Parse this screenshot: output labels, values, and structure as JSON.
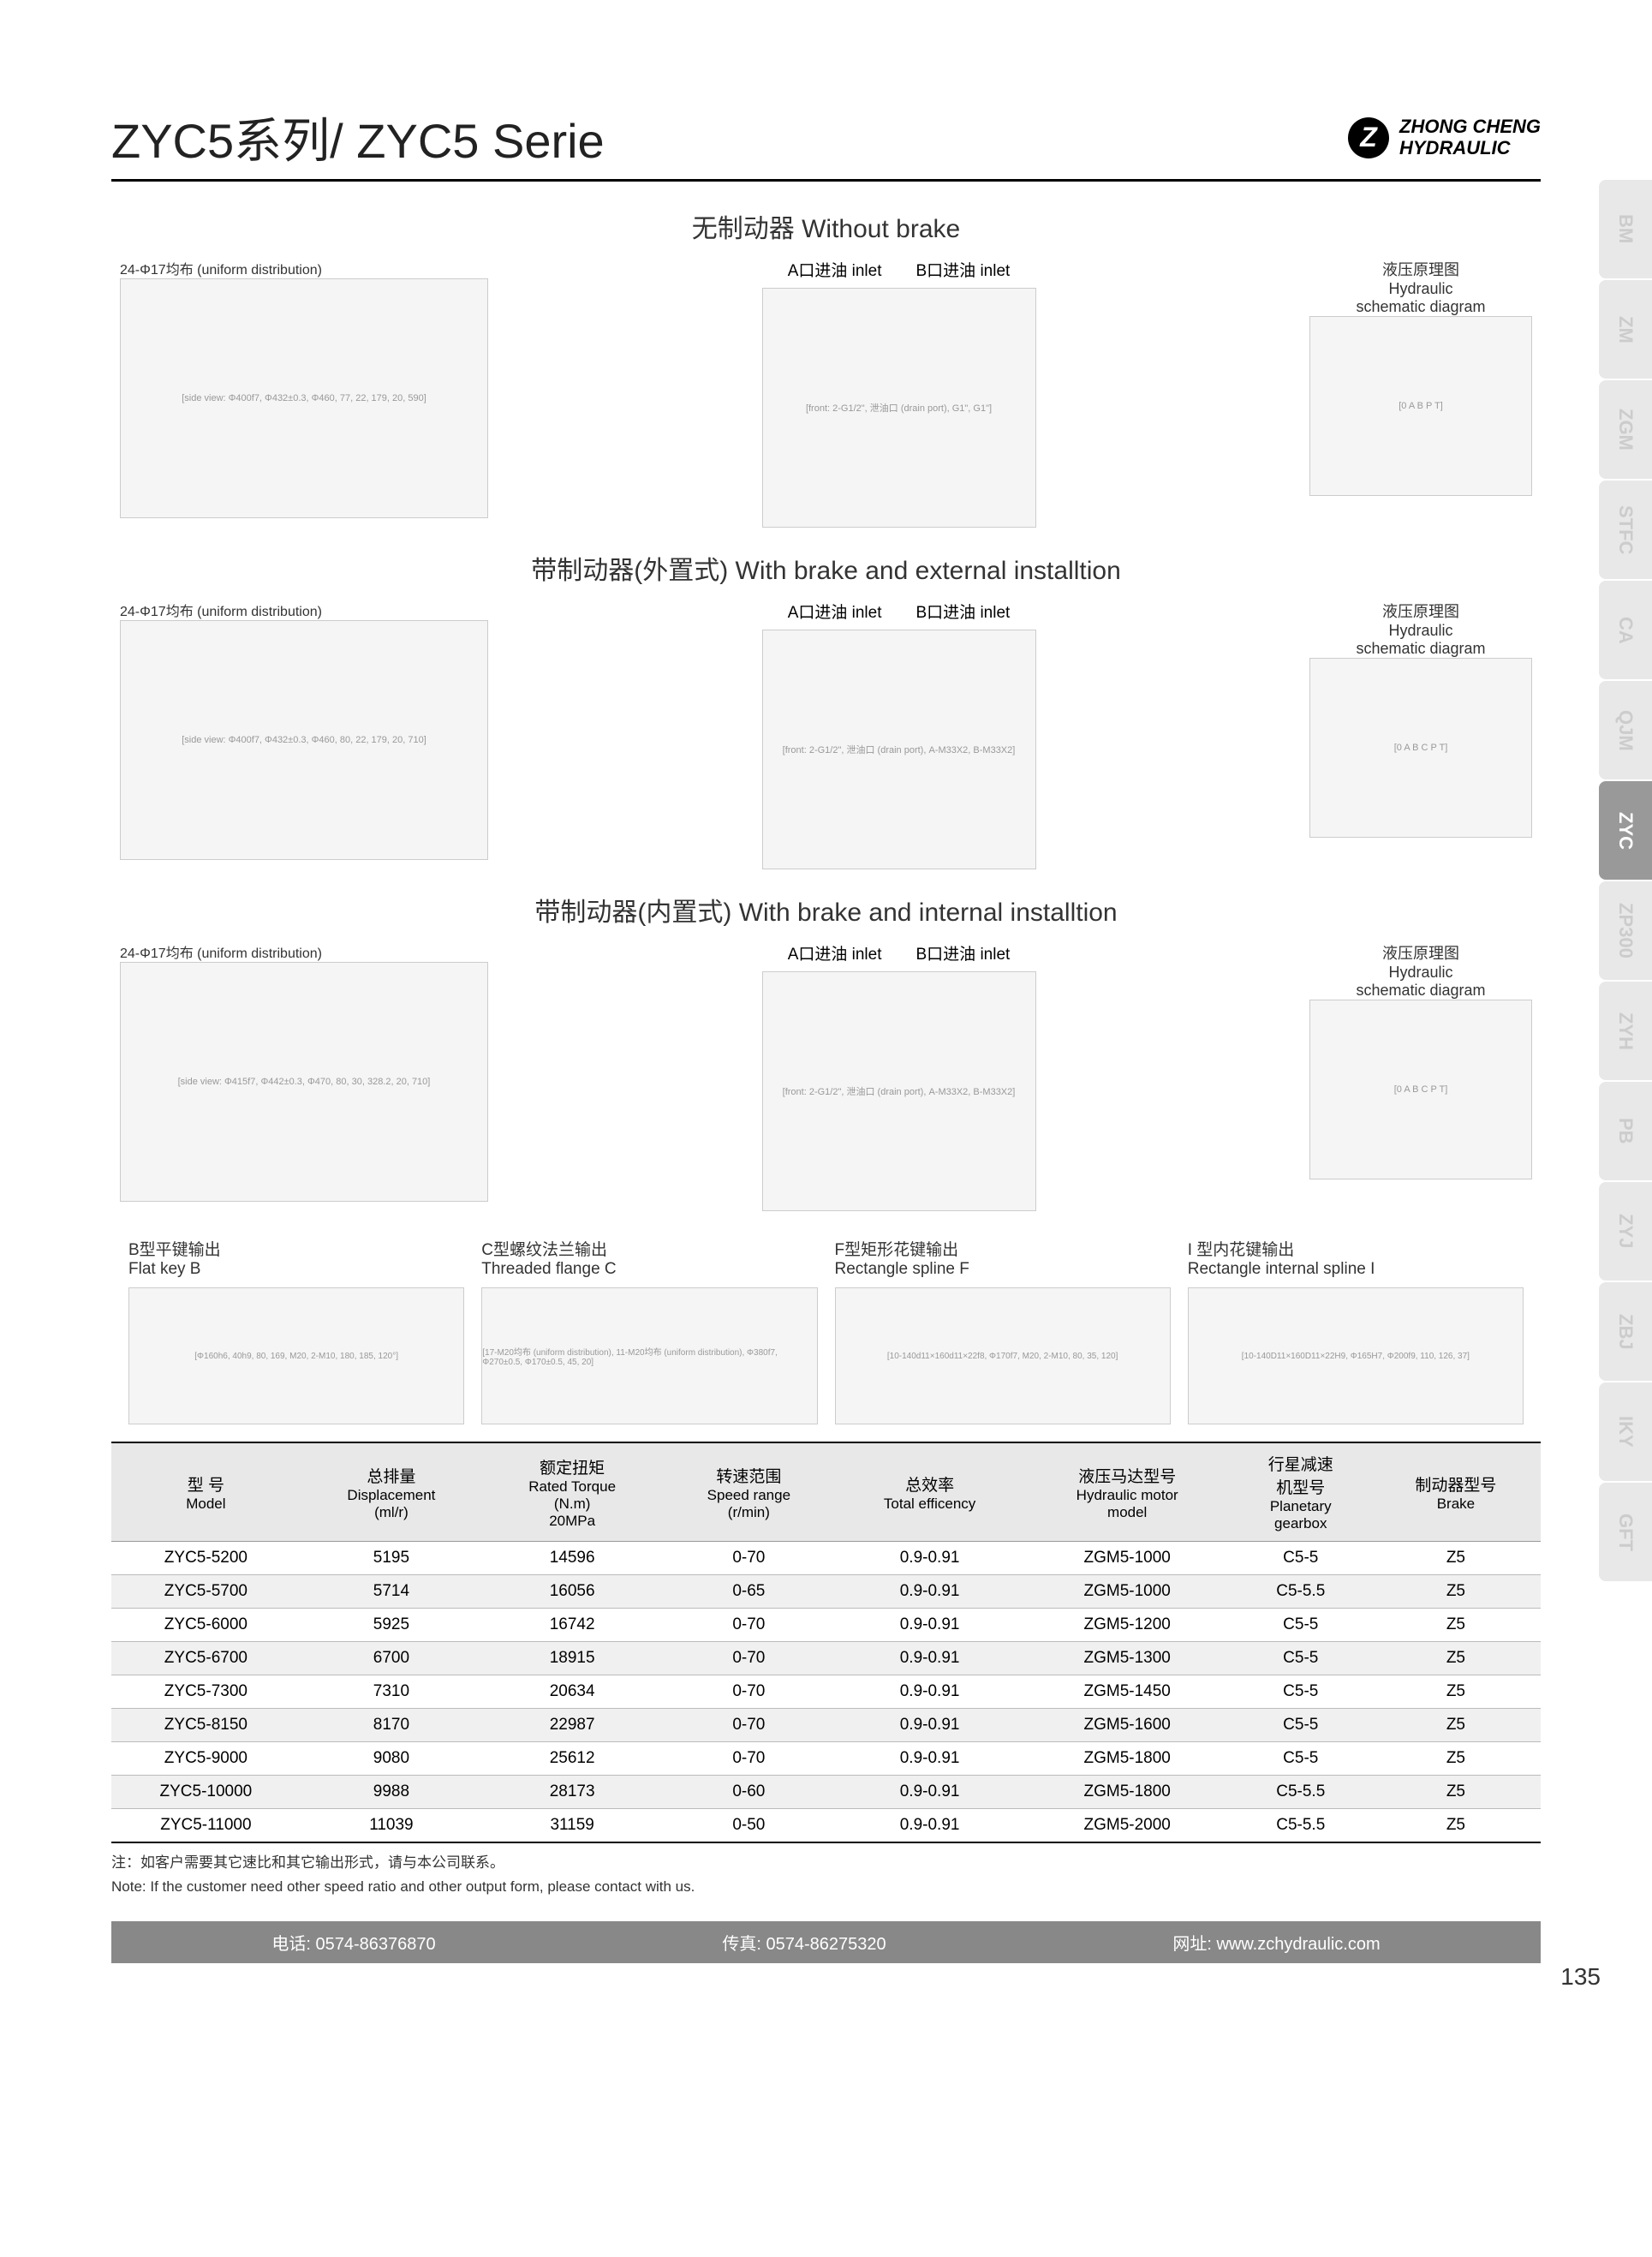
{
  "header": {
    "title": "ZYC5系列/ ZYC5 Serie",
    "brand_line1": "ZHONG CHENG",
    "brand_line2": "HYDRAULIC"
  },
  "sections": [
    {
      "title": "无制动器 Without brake",
      "uniform_label": "24-Φ17均布   (uniform distribution)",
      "inlet_a": "A口进油 inlet",
      "inlet_b": "B口进油  inlet",
      "schematic_cn": "液压原理图",
      "schematic_en1": "Hydraulic",
      "schematic_en2": "schematic diagram",
      "side_dims": [
        "Φ400f7",
        "Φ432±0.3",
        "Φ460",
        "77",
        "22",
        "179",
        "20",
        "590"
      ],
      "front_dims": [
        "2-G1/2\"",
        "泄油口 (drain port)",
        "G1\"",
        "G1\""
      ],
      "schematic_labels": [
        "0",
        "A",
        "B",
        "P",
        "T"
      ]
    },
    {
      "title": "带制动器(外置式) With brake and external installtion",
      "uniform_label": "24-Φ17均布   (uniform distribution)",
      "inlet_a": "A口进油 inlet",
      "inlet_b": "B口进油  inlet",
      "schematic_cn": "液压原理图",
      "schematic_en1": "Hydraulic",
      "schematic_en2": "schematic diagram",
      "side_dims": [
        "Φ400f7",
        "Φ432±0.3",
        "Φ460",
        "80",
        "22",
        "179",
        "20",
        "710"
      ],
      "front_dims": [
        "2-G1/2\"",
        "泄油口 (drain port)",
        "A-M33X2",
        "B-M33X2"
      ],
      "schematic_labels": [
        "0",
        "A",
        "B",
        "C",
        "P",
        "T"
      ]
    },
    {
      "title": "带制动器(内置式) With brake and internal installtion",
      "uniform_label": "24-Φ17均布   (uniform distribution)",
      "inlet_a": "A口进油 inlet",
      "inlet_b": "B口进油  inlet",
      "schematic_cn": "液压原理图",
      "schematic_en1": "Hydraulic",
      "schematic_en2": "schematic diagram",
      "side_dims": [
        "Φ415f7",
        "Φ442±0.3",
        "Φ470",
        "80",
        "30",
        "328.2",
        "20",
        "710"
      ],
      "front_dims": [
        "2-G1/2\"",
        "泄油口 (drain port)",
        "A-M33X2",
        "B-M33X2"
      ],
      "schematic_labels": [
        "0",
        "A",
        "B",
        "C",
        "P",
        "T"
      ]
    }
  ],
  "outputs": [
    {
      "cn": "B型平键输出",
      "en": "Flat key B",
      "dims": [
        "Φ160h6",
        "40h9",
        "80",
        "169",
        "M20",
        "2-M10",
        "180",
        "185",
        "120°"
      ]
    },
    {
      "cn": "C型螺纹法兰输出",
      "en": "Threaded flange C",
      "dims": [
        "17-M20均布   (uniform distribution)",
        "11-M20均布   (uniform distribution)",
        "Φ380f7",
        "Φ270±0.5",
        "Φ170±0.5",
        "45",
        "20"
      ]
    },
    {
      "cn": "F型矩形花键输出",
      "en": "Rectangle spline F",
      "dims": [
        "10-140d11×160d11×22f8",
        "Φ170f7",
        "M20",
        "2-M10",
        "80",
        "35",
        "120"
      ]
    },
    {
      "cn": "I 型内花键输出",
      "en": "Rectangle internal spline I",
      "dims": [
        "10-140D11×160D11×22H9",
        "Φ165H7",
        "Φ200f9",
        "110",
        "126",
        "37"
      ]
    }
  ],
  "table": {
    "headers": [
      {
        "cn": "型  号",
        "en": "Model"
      },
      {
        "cn": "总排量",
        "en": "Displacement\n(ml/r)"
      },
      {
        "cn": "额定扭矩",
        "en": "Rated Torque\n(N.m)\n20MPa"
      },
      {
        "cn": "转速范围",
        "en": "Speed range\n(r/min)"
      },
      {
        "cn": "总效率",
        "en": "Total efficency"
      },
      {
        "cn": "液压马达型号",
        "en": "Hydraulic motor\nmodel"
      },
      {
        "cn": "行星减速\n机型号",
        "en": "Planetary\ngearbox"
      },
      {
        "cn": "制动器型号",
        "en": "Brake"
      }
    ],
    "rows": [
      [
        "ZYC5-5200",
        "5195",
        "14596",
        "0-70",
        "0.9-0.91",
        "ZGM5-1000",
        "C5-5",
        "Z5"
      ],
      [
        "ZYC5-5700",
        "5714",
        "16056",
        "0-65",
        "0.9-0.91",
        "ZGM5-1000",
        "C5-5.5",
        "Z5"
      ],
      [
        "ZYC5-6000",
        "5925",
        "16742",
        "0-70",
        "0.9-0.91",
        "ZGM5-1200",
        "C5-5",
        "Z5"
      ],
      [
        "ZYC5-6700",
        "6700",
        "18915",
        "0-70",
        "0.9-0.91",
        "ZGM5-1300",
        "C5-5",
        "Z5"
      ],
      [
        "ZYC5-7300",
        "7310",
        "20634",
        "0-70",
        "0.9-0.91",
        "ZGM5-1450",
        "C5-5",
        "Z5"
      ],
      [
        "ZYC5-8150",
        "8170",
        "22987",
        "0-70",
        "0.9-0.91",
        "ZGM5-1600",
        "C5-5",
        "Z5"
      ],
      [
        "ZYC5-9000",
        "9080",
        "25612",
        "0-70",
        "0.9-0.91",
        "ZGM5-1800",
        "C5-5",
        "Z5"
      ],
      [
        "ZYC5-10000",
        "9988",
        "28173",
        "0-60",
        "0.9-0.91",
        "ZGM5-1800",
        "C5-5.5",
        "Z5"
      ],
      [
        "ZYC5-11000",
        "11039",
        "31159",
        "0-50",
        "0.9-0.91",
        "ZGM5-2000",
        "C5-5.5",
        "Z5"
      ]
    ]
  },
  "note_cn": "注：如客户需要其它速比和其它输出形式，请与本公司联系。",
  "note_en": "Note: If the customer need other speed ratio and other output form, please contact with us.",
  "footer": {
    "phone": "电话: 0574-86376870",
    "fax": "传真: 0574-86275320",
    "web": "网址: www.zchydraulic.com"
  },
  "page_number": "135",
  "side_tabs": [
    "BM",
    "ZM",
    "ZGM",
    "STFC",
    "CA",
    "QJM",
    "ZYC",
    "ZP300",
    "ZYH",
    "PB",
    "ZYJ",
    "ZBJ",
    "IKY",
    "GFT"
  ],
  "active_tab": "ZYC"
}
